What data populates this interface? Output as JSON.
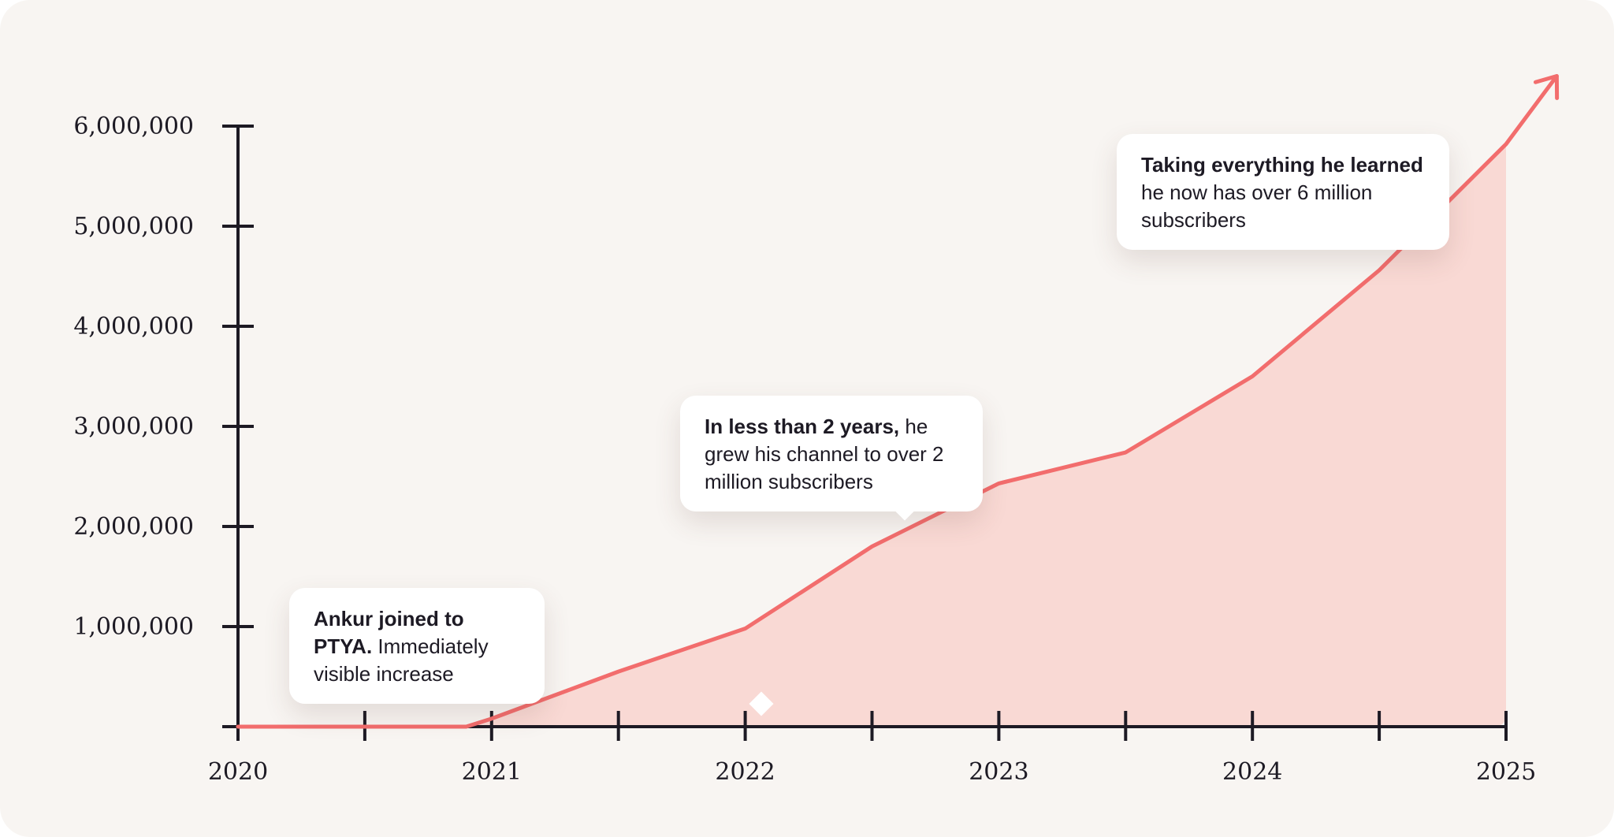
{
  "chart_data": {
    "type": "area",
    "x": [
      2020,
      2020.5,
      2020.9,
      2021,
      2021.5,
      2022,
      2022.5,
      2023,
      2023.5,
      2024,
      2024.5,
      2025,
      2025.2
    ],
    "values": [
      0,
      0,
      0,
      80000,
      550000,
      980000,
      1800000,
      2430000,
      2740000,
      3500000,
      4560000,
      5820000,
      6500000
    ],
    "xlim": [
      2020,
      2025
    ],
    "ylim": [
      0,
      6000000
    ],
    "yticks": [
      1000000,
      2000000,
      3000000,
      4000000,
      5000000,
      6000000
    ],
    "yticklabels": [
      "1,000,000",
      "2,000,000",
      "3,000,000",
      "4,000,000",
      "5,000,000",
      "6,000,000"
    ],
    "xticks": [
      2020,
      2020.5,
      2021,
      2021.5,
      2022,
      2022.5,
      2023,
      2023.5,
      2024,
      2024.5,
      2025
    ],
    "xticklabels": [
      "2020",
      "2021",
      "2022",
      "2023",
      "2024",
      "2025"
    ],
    "xticklabel_values": [
      2020,
      2021,
      2022,
      2023,
      2024,
      2025
    ],
    "grid": false,
    "colors": {
      "line": "#f26d6d",
      "area": "#f9d9d4",
      "axis": "#1d1a24",
      "background": "#f8f5f2"
    },
    "annotations": [
      {
        "bold": "Ankur joined to PTYA.",
        "text": " Immediately visible increase",
        "x": 2020.93,
        "y": 0
      },
      {
        "bold": "In less than 2 years,",
        "text": " he grew his channel to over 2 million subscribers",
        "x": 2022.63,
        "y": 1950000
      },
      {
        "bold": "Taking everything he learned",
        "text": " he now has over 6 million subscribers",
        "x": 2024.7,
        "y": 5200000
      }
    ]
  }
}
